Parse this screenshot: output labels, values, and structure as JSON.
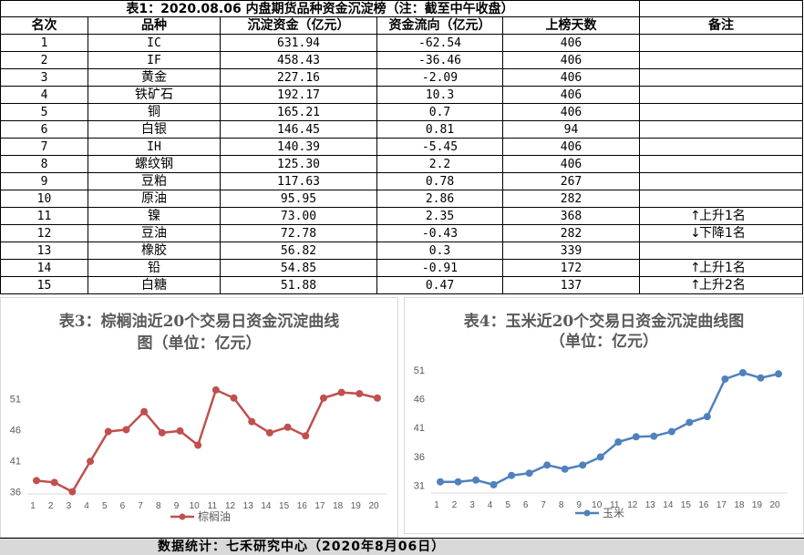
{
  "table": {
    "title": "表1：2020.08.06 内盘期货品种资金沉淀榜（注：截至中午收盘）",
    "headers": [
      "名次",
      "品种",
      "沉淀资金（亿元）",
      "资金流向（亿元）",
      "上榜天数",
      "备注"
    ],
    "rows": [
      {
        "rank": "1",
        "name": "IC",
        "fund": "631.94",
        "flow": "-62.54",
        "days": "406",
        "note": ""
      },
      {
        "rank": "2",
        "name": "IF",
        "fund": "458.43",
        "flow": "-36.46",
        "days": "406",
        "note": ""
      },
      {
        "rank": "3",
        "name": "黄金",
        "fund": "227.16",
        "flow": "-2.09",
        "days": "406",
        "note": ""
      },
      {
        "rank": "4",
        "name": "铁矿石",
        "fund": "192.17",
        "flow": "10.3",
        "days": "406",
        "note": ""
      },
      {
        "rank": "5",
        "name": "铜",
        "fund": "165.21",
        "flow": "0.7",
        "days": "406",
        "note": ""
      },
      {
        "rank": "6",
        "name": "白银",
        "fund": "146.45",
        "flow": "0.81",
        "days": "94",
        "note": ""
      },
      {
        "rank": "7",
        "name": "IH",
        "fund": "140.39",
        "flow": "-5.45",
        "days": "406",
        "note": ""
      },
      {
        "rank": "8",
        "name": "螺纹钢",
        "fund": "125.30",
        "flow": "2.2",
        "days": "406",
        "note": ""
      },
      {
        "rank": "9",
        "name": "豆粕",
        "fund": "117.63",
        "flow": "0.78",
        "days": "267",
        "note": ""
      },
      {
        "rank": "10",
        "name": "原油",
        "fund": "95.95",
        "flow": "2.86",
        "days": "282",
        "note": ""
      },
      {
        "rank": "11",
        "name": "镍",
        "fund": "73.00",
        "flow": "2.35",
        "days": "368",
        "note": "上升1名",
        "arrow": "up"
      },
      {
        "rank": "12",
        "name": "豆油",
        "fund": "72.78",
        "flow": "-0.43",
        "days": "282",
        "note": "下降1名",
        "arrow": "down"
      },
      {
        "rank": "13",
        "name": "橡胶",
        "fund": "56.82",
        "flow": "0.3",
        "days": "339",
        "note": ""
      },
      {
        "rank": "14",
        "name": "铅",
        "fund": "54.85",
        "flow": "-0.91",
        "days": "172",
        "note": "上升1名",
        "arrow": "up"
      },
      {
        "rank": "15",
        "name": "白糖",
        "fund": "51.88",
        "flow": "0.47",
        "days": "137",
        "note": "上升2名",
        "arrow": "up"
      }
    ]
  },
  "chart_data": [
    {
      "type": "line",
      "title": "表3：棕榈油近20个交易日资金沉淀曲线图（单位：亿元）",
      "title_lines": [
        "表3：棕榈油近20个交易日资金沉淀曲线",
        "图（单位：亿元）"
      ],
      "categories": [
        "1",
        "2",
        "3",
        "4",
        "5",
        "6",
        "7",
        "8",
        "9",
        "10",
        "11",
        "12",
        "13",
        "14",
        "15",
        "16",
        "17",
        "18",
        "19",
        "20"
      ],
      "series": [
        {
          "name": "棕榈油",
          "color": "#c0504d",
          "values": [
            37.8,
            37.5,
            36.0,
            40.9,
            45.7,
            46.0,
            48.9,
            45.5,
            45.8,
            43.5,
            52.4,
            51.1,
            47.3,
            45.5,
            46.4,
            45.0,
            51.1,
            52.0,
            51.8,
            51.1
          ]
        }
      ],
      "yticks": [
        36,
        41,
        46,
        51
      ],
      "ylim": [
        35.5,
        54
      ],
      "legend": "bottom",
      "grid": false
    },
    {
      "type": "line",
      "title": "表4：玉米近20个交易日资金沉淀曲线图（单位：亿元）",
      "title_lines": [
        "表4：玉米近20个交易日资金沉淀曲线图",
        "（单位：亿元）"
      ],
      "categories": [
        "1",
        "2",
        "3",
        "4",
        "5",
        "6",
        "7",
        "8",
        "9",
        "10",
        "11",
        "12",
        "13",
        "14",
        "15",
        "16",
        "17",
        "18",
        "19",
        "20"
      ],
      "series": [
        {
          "name": "玉米",
          "color": "#4f81bd",
          "values": [
            31.6,
            31.6,
            31.9,
            31.1,
            32.7,
            33.1,
            34.5,
            33.8,
            34.5,
            35.9,
            38.5,
            39.4,
            39.5,
            40.3,
            41.9,
            42.9,
            49.4,
            50.5,
            49.6,
            50.3
          ]
        }
      ],
      "yticks": [
        31,
        36,
        41,
        46,
        51
      ],
      "ylim": [
        29.5,
        53.5
      ],
      "legend": "bottom",
      "grid": false
    }
  ],
  "footer": {
    "text": "数据统计：七禾研究中心（2020年8月06日）"
  }
}
